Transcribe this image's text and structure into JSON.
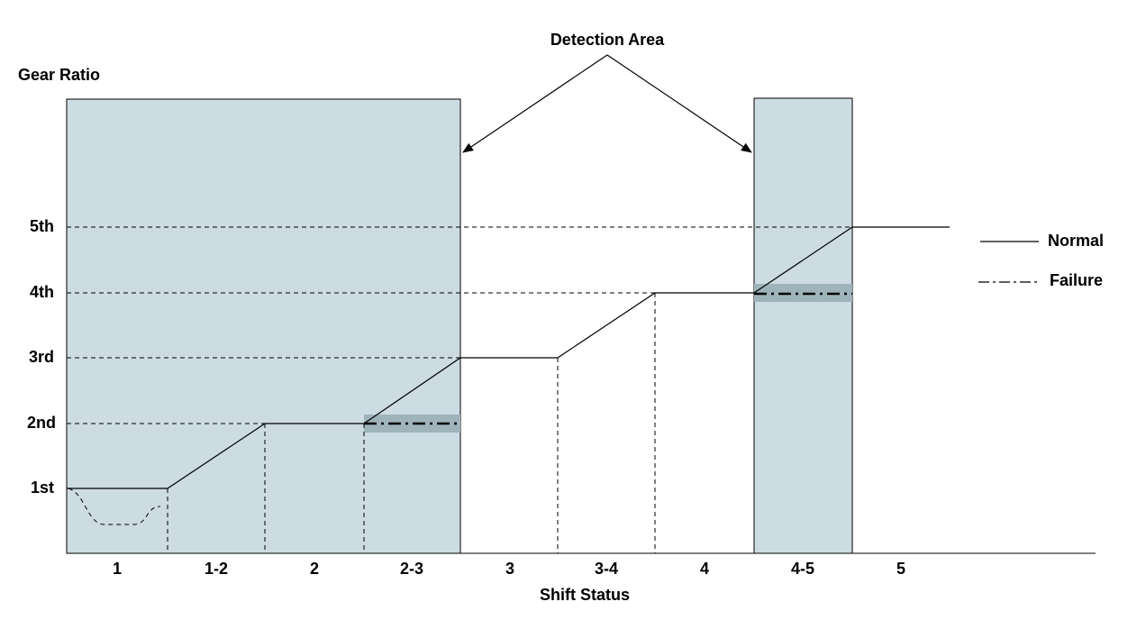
{
  "title": "Detection Area",
  "y_axis": {
    "label": "Gear Ratio",
    "levels": [
      "1st",
      "2nd",
      "3rd",
      "4th",
      "5th"
    ]
  },
  "x_axis": {
    "label": "Shift Status",
    "categories": [
      "1",
      "1-2",
      "2",
      "2-3",
      "3",
      "3-4",
      "4",
      "4-5",
      "5"
    ]
  },
  "legend": [
    "Normal",
    "Failure"
  ]
}
